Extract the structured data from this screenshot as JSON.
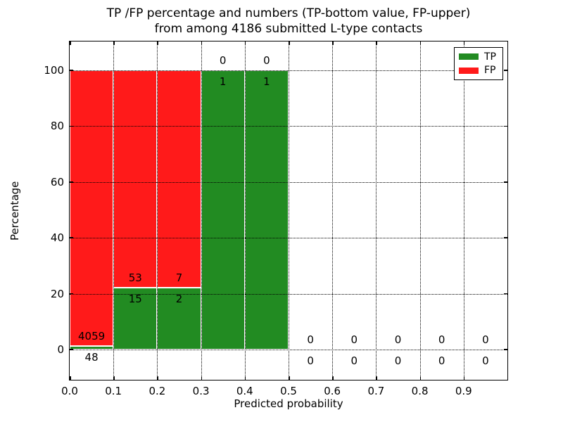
{
  "chart_data": {
    "type": "bar",
    "stacked": true,
    "title_line1": "TP /FP percentage and numbers (TP-bottom value, FP-upper)",
    "title_line2": "from among 4186 submitted L-type contacts",
    "xlabel": "Predicted probability",
    "ylabel": "Percentage",
    "total_submitted": 4186,
    "legend_position": "upper right",
    "grid": "dotted, drawn above bars",
    "xlim": [
      0.0,
      1.0
    ],
    "ylim_display": [
      -10.8,
      110.3
    ],
    "yticks": [
      "0",
      "20",
      "40",
      "60",
      "80",
      "100"
    ],
    "ytick_values": [
      0,
      20,
      40,
      60,
      80,
      100
    ],
    "xticks": [
      "0.0",
      "0.1",
      "0.2",
      "0.3",
      "0.4",
      "0.5",
      "0.6",
      "0.7",
      "0.8",
      "0.9"
    ],
    "xtick_values": [
      0.0,
      0.1,
      0.2,
      0.3,
      0.4,
      0.5,
      0.6,
      0.7,
      0.8,
      0.9
    ],
    "series": [
      {
        "name": "TP",
        "color": "#228b22",
        "counts": [
          48,
          15,
          2,
          1,
          1,
          0,
          0,
          0,
          0,
          0
        ]
      },
      {
        "name": "FP",
        "color": "#ff1a1a",
        "counts": [
          4059,
          53,
          7,
          0,
          0,
          0,
          0,
          0,
          0,
          0
        ]
      }
    ],
    "bins": [
      {
        "range": "0.0-0.1",
        "tp": 48,
        "fp": 4059,
        "tp_pct": 1.17,
        "fp_pct": 98.83
      },
      {
        "range": "0.1-0.2",
        "tp": 15,
        "fp": 53,
        "tp_pct": 22.06,
        "fp_pct": 77.94
      },
      {
        "range": "0.2-0.3",
        "tp": 2,
        "fp": 7,
        "tp_pct": 22.22,
        "fp_pct": 77.78
      },
      {
        "range": "0.3-0.4",
        "tp": 1,
        "fp": 0,
        "tp_pct": 100,
        "fp_pct": 0
      },
      {
        "range": "0.4-0.5",
        "tp": 1,
        "fp": 0,
        "tp_pct": 100,
        "fp_pct": 0
      },
      {
        "range": "0.5-0.6",
        "tp": 0,
        "fp": 0,
        "tp_pct": 0,
        "fp_pct": 0
      },
      {
        "range": "0.6-0.7",
        "tp": 0,
        "fp": 0,
        "tp_pct": 0,
        "fp_pct": 0
      },
      {
        "range": "0.7-0.8",
        "tp": 0,
        "fp": 0,
        "tp_pct": 0,
        "fp_pct": 0
      },
      {
        "range": "0.8-0.9",
        "tp": 0,
        "fp": 0,
        "tp_pct": 0,
        "fp_pct": 0
      },
      {
        "range": "0.9-1.0",
        "tp": 0,
        "fp": 0,
        "tp_pct": 0,
        "fp_pct": 0
      }
    ],
    "legend": {
      "entries": [
        {
          "label": "TP",
          "color": "#228b22"
        },
        {
          "label": "FP",
          "color": "#ff1a1a"
        }
      ]
    }
  }
}
